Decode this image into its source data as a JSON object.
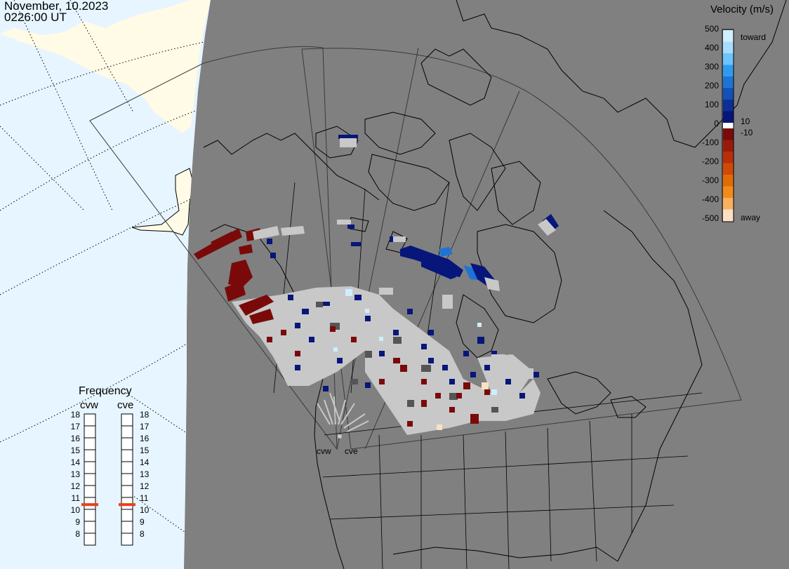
{
  "header": {
    "date": "November, 10.2023",
    "time": "0226:00 UT"
  },
  "legend": {
    "title": "Velocity (m/s)",
    "ticks": [
      "500",
      "400",
      "300",
      "200",
      "100",
      "0",
      "-100",
      "-200",
      "-300",
      "-400",
      "-500"
    ],
    "label_toward": "toward",
    "label_away": "away",
    "label_plus10": "10",
    "label_minus10": "-10",
    "colors_toward": [
      "#cfeeff",
      "#a6dcff",
      "#6cc3ff",
      "#2d9cf0",
      "#1e74d6",
      "#1350b8",
      "#0b2f96",
      "#06167a"
    ],
    "colors_away": [
      "#7a0a0a",
      "#9a1a0a",
      "#b82f08",
      "#d04a06",
      "#e46a06",
      "#f58a1a",
      "#fbb060",
      "#fde0c4"
    ],
    "ground_scatter_color": "#555555",
    "no_data_color": "#c8c8c8"
  },
  "frequency": {
    "title": "Frequency",
    "radars": [
      "cvw",
      "cve"
    ],
    "scale": [
      "18",
      "17",
      "16",
      "15",
      "14",
      "13",
      "12",
      "11",
      "10",
      "9",
      "8"
    ],
    "cvw_mhz": 10.9,
    "cve_mhz": 10.9,
    "marker_color": "#e8401a"
  },
  "map": {
    "radar_sites": [
      "cvw",
      "cve"
    ],
    "background_color": "#808080",
    "land_color": "#fffbe6",
    "ocean_color": "#e6f5ff"
  }
}
